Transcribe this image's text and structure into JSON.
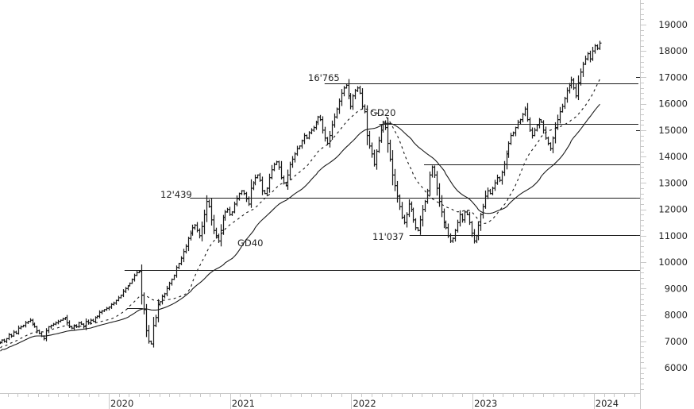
{
  "chart_data": {
    "type": "ohlc-line",
    "title": "",
    "instrument_description": "Weekly bar chart with 20- and 40-period moving averages",
    "xlabel": "",
    "ylabel": "",
    "ylim": [
      4900,
      19900
    ],
    "y_ticks": [
      6000,
      7000,
      8000,
      9000,
      10000,
      11000,
      12000,
      13000,
      14000,
      15000,
      16000,
      17000,
      18000,
      19000
    ],
    "y_tick_labels": [
      "6000",
      "7000",
      "8000",
      "9000",
      "10000",
      "11000",
      "12000",
      "13000",
      "14000",
      "15000",
      "16000",
      "17000",
      "18000",
      "19000"
    ],
    "x_tick_labels": [
      "2020",
      "2021",
      "2022",
      "2023",
      "2024"
    ],
    "x_ticks_year": [
      2020,
      2021,
      2022,
      2023,
      2024
    ],
    "x_range_year": [
      2019.1,
      2024.35
    ],
    "grid": false,
    "legend": "none",
    "annotations": [
      {
        "text": "16'765",
        "value": 16765
      },
      {
        "text": "12'439",
        "value": 12439
      },
      {
        "text": "11'037",
        "value": 11037
      },
      {
        "text": "GD20",
        "meaning": "20-week moving average (dashed)"
      },
      {
        "text": "GD40",
        "meaning": "40-week moving average (solid)"
      }
    ],
    "horizontal_levels": [
      {
        "value": 16765,
        "from_year": 2021.78,
        "label": "16'765"
      },
      {
        "value": 15250,
        "from_year": 2022.23
      },
      {
        "value": 13700,
        "from_year": 2022.6
      },
      {
        "value": 12439,
        "from_year": 2020.67,
        "label": "12'439"
      },
      {
        "value": 11037,
        "from_year": 2022.48,
        "label": "11'037"
      },
      {
        "value": 9700,
        "from_year": 2020.13
      },
      {
        "value": 8250,
        "from_year": 2020.15,
        "to_year": 2020.28
      }
    ],
    "series": [
      {
        "name": "Weekly close",
        "start_year": 2019.1,
        "step_weeks": 1,
        "values": [
          6950,
          7050,
          7000,
          7100,
          7250,
          7200,
          7350,
          7300,
          7500,
          7550,
          7600,
          7700,
          7750,
          7800,
          7650,
          7550,
          7400,
          7300,
          7200,
          7100,
          7400,
          7550,
          7600,
          7650,
          7700,
          7750,
          7800,
          7850,
          7900,
          7700,
          7550,
          7500,
          7600,
          7550,
          7700,
          7650,
          7550,
          7750,
          7700,
          7800,
          7750,
          7900,
          7950,
          8100,
          8150,
          8200,
          8250,
          8300,
          8400,
          8450,
          8550,
          8650,
          8750,
          8900,
          9000,
          9100,
          9200,
          9350,
          9500,
          9600,
          9650,
          8750,
          8200,
          7400,
          7000,
          6900,
          7600,
          7900,
          8400,
          8500,
          8700,
          8800,
          9000,
          9200,
          9350,
          9500,
          9800,
          9950,
          10150,
          10400,
          10600,
          10900,
          11100,
          11300,
          11400,
          11200,
          11000,
          11350,
          11800,
          12300,
          12100,
          11600,
          11200,
          11000,
          10800,
          11200,
          11700,
          11900,
          12000,
          11800,
          11900,
          12200,
          12400,
          12600,
          12700,
          12600,
          12400,
          12200,
          12800,
          13000,
          13200,
          13300,
          13100,
          12700,
          12600,
          12800,
          13200,
          13500,
          13700,
          13800,
          13600,
          13200,
          13000,
          12900,
          13300,
          13700,
          13900,
          14100,
          14300,
          14400,
          14600,
          14800,
          14700,
          14900,
          15000,
          15100,
          15300,
          15500,
          15400,
          15000,
          14700,
          14500,
          14800,
          15200,
          15500,
          15800,
          16100,
          16400,
          16600,
          16700,
          16300,
          15900,
          16300,
          16500,
          16600,
          16400,
          15900,
          15700,
          14800,
          14400,
          14100,
          13700,
          14200,
          14600,
          15000,
          15300,
          15100,
          14500,
          13900,
          13300,
          12900,
          12500,
          12100,
          11700,
          11500,
          11800,
          12200,
          12000,
          11600,
          11300,
          11200,
          11600,
          12000,
          12300,
          12700,
          13300,
          13600,
          13300,
          12800,
          12300,
          11900,
          11500,
          11300,
          11000,
          10800,
          10900,
          11200,
          11500,
          11800,
          11600,
          11900,
          11800,
          11500,
          11100,
          10800,
          11000,
          11400,
          11800,
          12100,
          12500,
          12700,
          12600,
          12800,
          13000,
          13200,
          13100,
          13400,
          13700,
          14100,
          14500,
          14800,
          14900,
          15100,
          15300,
          15400,
          15600,
          15800,
          15400,
          15000,
          14800,
          15000,
          15200,
          15400,
          15300,
          15000,
          14700,
          14500,
          14300,
          14700,
          15100,
          15400,
          15700,
          15900,
          16200,
          16500,
          16700,
          16900,
          16600,
          16300,
          16800,
          17200,
          17500,
          17700,
          17900,
          17700,
          18000,
          18200,
          18100,
          18300
        ]
      }
    ]
  }
}
